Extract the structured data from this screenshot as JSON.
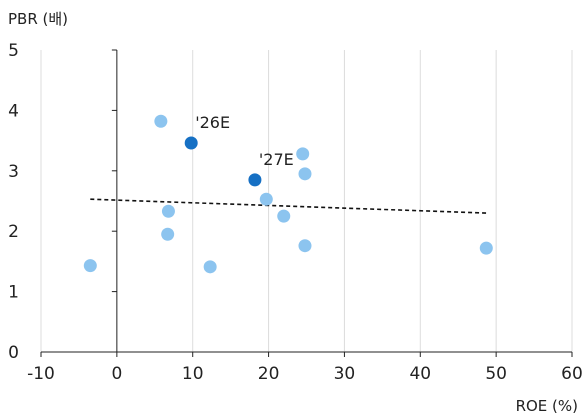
{
  "chart_data": {
    "type": "scatter",
    "title": "",
    "xlabel": "ROE (%)",
    "ylabel": "PBR (배)",
    "xlim": [
      -10,
      60
    ],
    "ylim": [
      0,
      5
    ],
    "x_ticks": [
      -10,
      0,
      10,
      20,
      30,
      40,
      50,
      60
    ],
    "y_ticks": [
      0,
      1,
      2,
      3,
      4,
      5
    ],
    "grid": "vertical",
    "legend": "none",
    "colors": {
      "peer": "#8cc4ef",
      "highlight": "#1670c4",
      "trendline": "#111111",
      "grid": "#dcdcdc",
      "axis": "#222222"
    },
    "series": [
      {
        "points": [
          {
            "x": -3.5,
            "y": 1.43
          },
          {
            "x": 5.8,
            "y": 3.82
          },
          {
            "x": 6.8,
            "y": 2.33
          },
          {
            "x": 6.7,
            "y": 1.95
          },
          {
            "x": 12.3,
            "y": 1.41
          },
          {
            "x": 19.7,
            "y": 2.53
          },
          {
            "x": 22.0,
            "y": 2.25
          },
          {
            "x": 24.5,
            "y": 3.28
          },
          {
            "x": 24.8,
            "y": 2.95
          },
          {
            "x": 24.8,
            "y": 1.76
          },
          {
            "x": 48.7,
            "y": 1.72
          }
        ]
      },
      {
        "points": [
          {
            "x": 9.8,
            "y": 3.46,
            "label": "'26E"
          },
          {
            "x": 18.2,
            "y": 2.85,
            "label": "'27E"
          }
        ]
      }
    ],
    "trendline": {
      "style": "dashed",
      "x": [
        -3.5,
        48.7
      ],
      "y": [
        2.53,
        2.3
      ]
    }
  }
}
